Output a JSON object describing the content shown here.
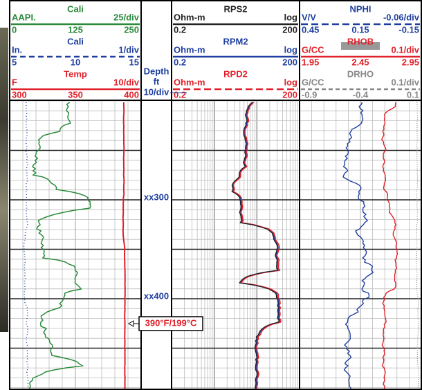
{
  "tracks": [
    {
      "curves": [
        {
          "unit": "AAPI.",
          "name": "Cali",
          "scale": "25/div",
          "ticks": [
            "0",
            "125",
            "250"
          ]
        },
        {
          "unit": "In.",
          "name": "Cali",
          "scale": "1/div",
          "ticks": [
            "5",
            "10",
            "15"
          ]
        },
        {
          "unit": "F",
          "name": "Temp",
          "scale": "10/div",
          "ticks": [
            "300",
            "350",
            "400"
          ]
        }
      ]
    },
    {
      "curves": [
        {
          "unit": "Ohm-m",
          "name": "RPS2",
          "scale": "log",
          "ticks": [
            "0.2",
            "200"
          ]
        },
        {
          "unit": "Ohm-m",
          "name": "RPM2",
          "scale": "log",
          "ticks": [
            "0.2",
            "200"
          ]
        },
        {
          "unit": "Ohm-m",
          "name": "RPD2",
          "scale": "log",
          "ticks": [
            "0.2",
            "200"
          ]
        }
      ]
    },
    {
      "curves": [
        {
          "unit": "V/V",
          "name": "NPHI",
          "scale": "-0.06/div",
          "ticks": [
            "0.45",
            "0.15",
            "-0.15"
          ]
        },
        {
          "unit": "G/CC",
          "name": "RHOB",
          "scale": "0.1/div",
          "ticks": [
            "1.95",
            "2.45",
            "2.95"
          ]
        },
        {
          "unit": "G/CC",
          "name": "DRHO",
          "scale": "0.1/div",
          "ticks": [
            "-0.9",
            "-0.4",
            "0.1"
          ]
        }
      ]
    }
  ],
  "depth": {
    "header": [
      "Depth",
      "ft",
      "10/div"
    ],
    "labels": [
      "xx300",
      "xx400"
    ]
  },
  "annotation": "390°F/199°C"
}
